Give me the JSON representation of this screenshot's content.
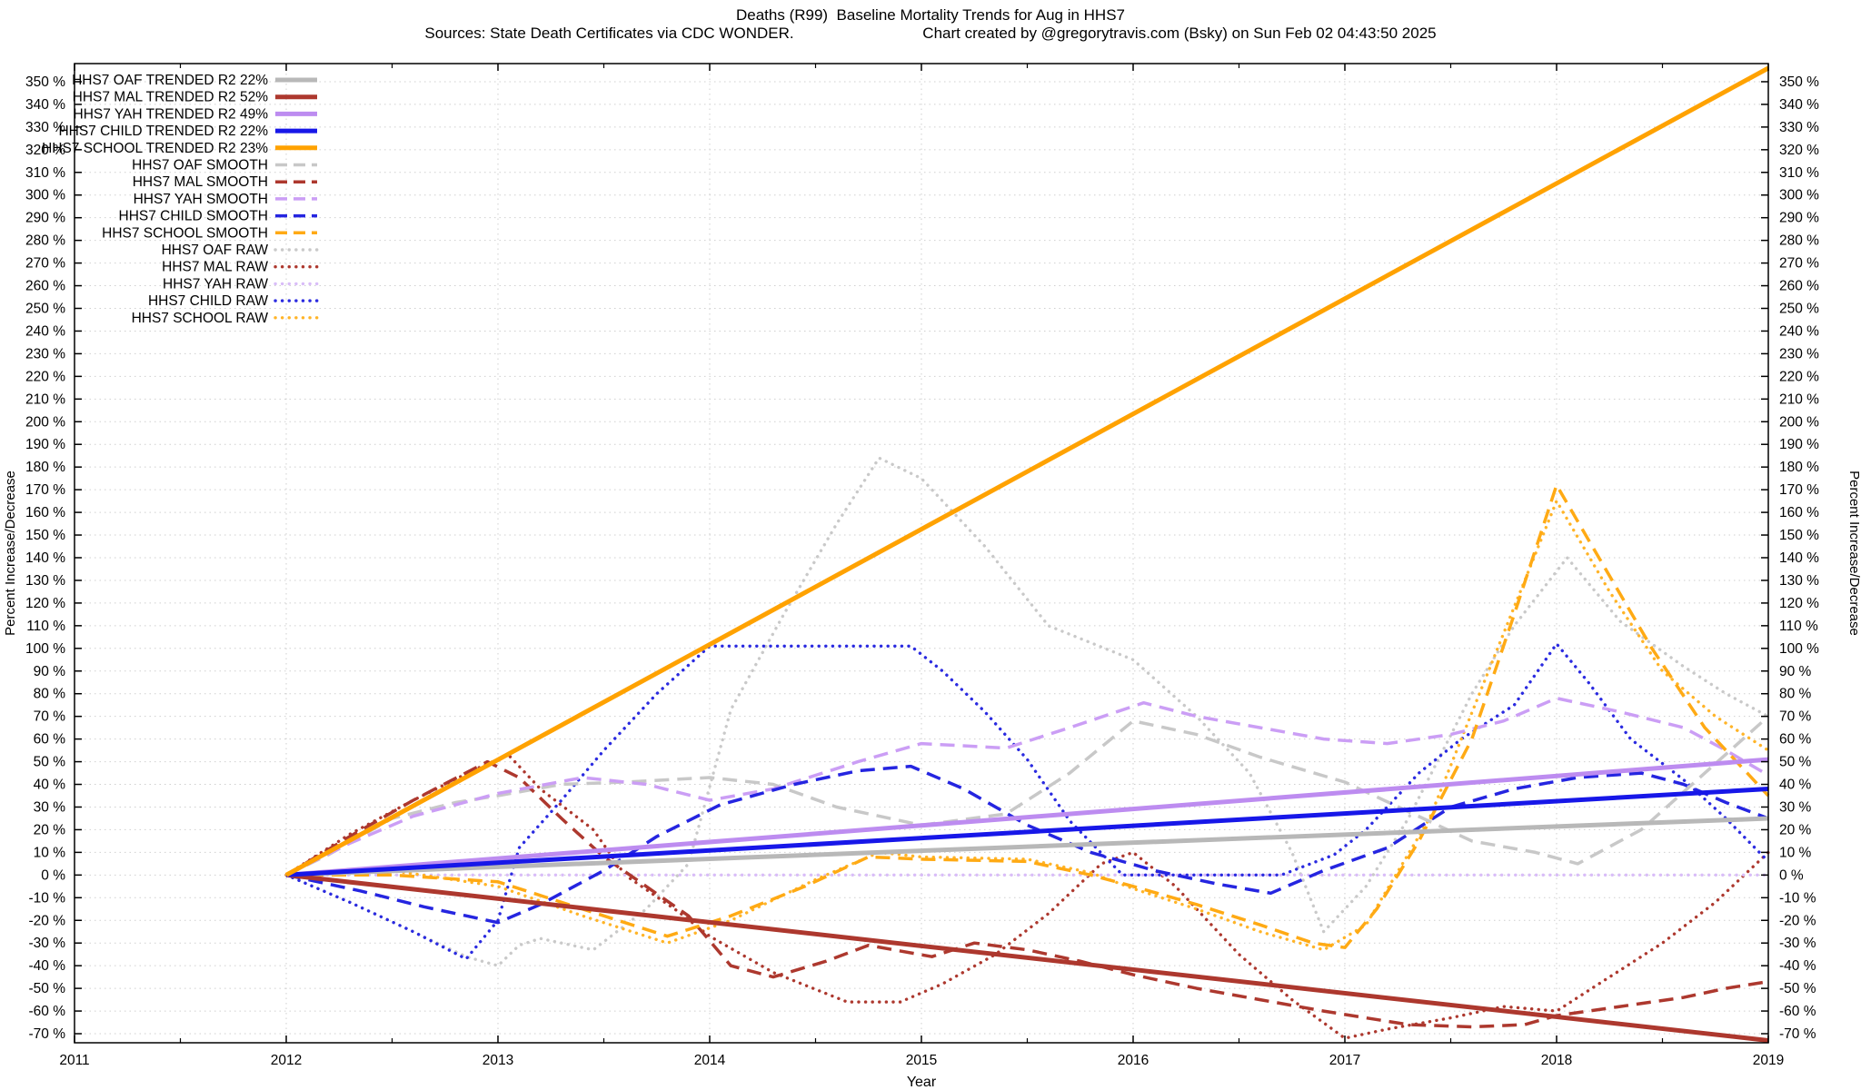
{
  "header": {
    "title": "Deaths (R99)  Baseline Mortality Trends for Aug in HHS7",
    "subtitle": "Sources: State Death Certificates via CDC WONDER.                              Chart created by @gregorytravis.com (Bsky) on Sun Feb 02 04:43:50 2025"
  },
  "chart_data": {
    "type": "line",
    "title": "Deaths (R99)  Baseline Mortality Trends for Aug in HHS7",
    "subtitle": "Sources: State Death Certificates via CDC WONDER.  Chart created by @gregorytravis.com (Bsky) on Sun Feb 02 04:43:50 2025",
    "xlabel": "Year",
    "ylabel_left": "Percent Increase/Decrease",
    "ylabel_right": "Percent Increase/Decrease",
    "xlim": [
      2011,
      2019
    ],
    "ylim": [
      -74,
      358
    ],
    "x_ticks": [
      2011,
      2012,
      2013,
      2014,
      2015,
      2016,
      2017,
      2018,
      2019
    ],
    "x_minor_step": 0.5,
    "y_ticks": {
      "min": -70,
      "max": 350,
      "step": 10,
      "suffix": " %"
    },
    "grid": true,
    "legend_position": "top-left",
    "series": [
      {
        "id": "oaf-trended",
        "legend": "HHS7 OAF TRENDED R2  22%",
        "style": "trended",
        "color": "#b8b8b8",
        "x": [
          2012,
          2019
        ],
        "y": [
          0,
          25
        ]
      },
      {
        "id": "mal-trended",
        "legend": "HHS7 MAL TRENDED R2  52%",
        "style": "trended",
        "color": "#ad382e",
        "x": [
          2012,
          2019
        ],
        "y": [
          0,
          -73
        ]
      },
      {
        "id": "yah-trended",
        "legend": "HHS7 YAH TRENDED R2  49%",
        "style": "trended",
        "color": "#bd8cf0",
        "x": [
          2012,
          2019
        ],
        "y": [
          0,
          51
        ]
      },
      {
        "id": "child-trended",
        "legend": "HHS7 CHILD TRENDED R2  22%",
        "style": "trended",
        "color": "#1717e8",
        "x": [
          2012,
          2019
        ],
        "y": [
          0,
          38
        ]
      },
      {
        "id": "school-trended",
        "legend": "HHS7 SCHOOL TRENDED R2  23%",
        "style": "trended",
        "color": "#ffa200",
        "x": [
          2012,
          2019
        ],
        "y": [
          0,
          356
        ]
      },
      {
        "id": "oaf-smooth",
        "legend": "HHS7 OAF SMOOTH",
        "style": "smooth",
        "color": "#c8c8c8",
        "x": [
          2012,
          2012.2,
          2012.5,
          2012.8,
          2013,
          2013.3,
          2013.6,
          2014,
          2014.3,
          2014.6,
          2015,
          2015.4,
          2015.7,
          2016,
          2016.3,
          2016.6,
          2017,
          2017.3,
          2017.6,
          2017.9,
          2018.1,
          2018.4,
          2018.7,
          2019
        ],
        "y": [
          0,
          9,
          25,
          32,
          35,
          40,
          41,
          43,
          40,
          30,
          22,
          27,
          45,
          68,
          62,
          52,
          41,
          28,
          15,
          10,
          5,
          20,
          45,
          70
        ]
      },
      {
        "id": "mal-smooth",
        "legend": "HHS7 MAL SMOOTH",
        "style": "smooth",
        "color": "#ad382e",
        "x": [
          2012,
          2012.3,
          2012.6,
          2012.95,
          2013.1,
          2013.3,
          2013.5,
          2013.7,
          2013.9,
          2014.1,
          2014.3,
          2014.55,
          2014.75,
          2015.05,
          2015.25,
          2015.5,
          2015.75,
          2016,
          2016.3,
          2016.6,
          2016.9,
          2017.1,
          2017.3,
          2017.6,
          2017.85,
          2018,
          2018.3,
          2018.6,
          2018.8,
          2019
        ],
        "y": [
          0,
          17,
          33,
          50,
          43,
          25,
          8,
          -5,
          -18,
          -40,
          -45,
          -38,
          -31,
          -36,
          -30,
          -33,
          -38,
          -44,
          -50,
          -55,
          -60,
          -63,
          -66,
          -67,
          -66,
          -62,
          -58,
          -54,
          -50,
          -47
        ]
      },
      {
        "id": "yah-smooth",
        "legend": "HHS7 YAH SMOOTH",
        "style": "smooth",
        "color": "#cb9ef5",
        "x": [
          2012,
          2012.3,
          2012.6,
          2013,
          2013.4,
          2013.7,
          2014,
          2014.3,
          2014.7,
          2015,
          2015.4,
          2015.7,
          2016.05,
          2016.3,
          2016.6,
          2016.9,
          2017.2,
          2017.5,
          2017.75,
          2018,
          2018.3,
          2018.6,
          2018.8,
          2019
        ],
        "y": [
          0,
          14,
          26,
          36,
          43,
          40,
          33,
          38,
          50,
          58,
          56,
          65,
          76,
          70,
          65,
          60,
          58,
          62,
          68,
          78,
          72,
          65,
          55,
          44
        ]
      },
      {
        "id": "child-smooth",
        "legend": "HHS7 CHILD SMOOTH",
        "style": "smooth",
        "color": "#2525e0",
        "x": [
          2012,
          2012.35,
          2012.65,
          2013,
          2013.2,
          2013.5,
          2013.75,
          2014.05,
          2014.4,
          2014.7,
          2014.95,
          2015.2,
          2015.5,
          2015.8,
          2016.1,
          2016.4,
          2016.65,
          2016.9,
          2017.2,
          2017.5,
          2017.8,
          2018.1,
          2018.4,
          2018.6,
          2018.8,
          2019
        ],
        "y": [
          0,
          -7,
          -14,
          -21,
          -13,
          2,
          17,
          31,
          40,
          46,
          48,
          38,
          22,
          10,
          2,
          -4,
          -8,
          2,
          12,
          30,
          38,
          43,
          45,
          40,
          32,
          25
        ]
      },
      {
        "id": "school-smooth",
        "legend": "HHS7 SCHOOL SMOOTH",
        "style": "smooth",
        "color": "#ffaa14",
        "x": [
          2012,
          2012.5,
          2013,
          2013.4,
          2013.8,
          2014.1,
          2014.45,
          2014.75,
          2015,
          2015.5,
          2015.8,
          2016,
          2016.3,
          2016.6,
          2016.85,
          2017,
          2017.15,
          2017.35,
          2017.6,
          2017.8,
          2018,
          2018.2,
          2018.45,
          2018.7,
          2019
        ],
        "y": [
          0,
          0,
          -3,
          -15,
          -27,
          -18,
          -5,
          8,
          7,
          6,
          0,
          -5,
          -13,
          -22,
          -30,
          -32,
          -15,
          15,
          60,
          115,
          172,
          140,
          100,
          65,
          35
        ]
      },
      {
        "id": "oaf-raw",
        "legend": "HHS7 OAF RAW",
        "style": "raw",
        "color": "#c9c9c9",
        "x": [
          2012,
          2012.3,
          2012.6,
          2012.85,
          2013,
          2013.1,
          2013.2,
          2013.45,
          2013.7,
          2013.9,
          2014.1,
          2014.35,
          2014.6,
          2014.8,
          2015,
          2015.3,
          2015.6,
          2016,
          2016.3,
          2016.55,
          2016.75,
          2016.9,
          2017.1,
          2017.3,
          2017.6,
          2017.8,
          2018.05,
          2018.3,
          2018.6,
          2018.8,
          2019
        ],
        "y": [
          0,
          -12,
          -25,
          -36,
          -40,
          -31,
          -28,
          -33,
          -15,
          5,
          73,
          115,
          155,
          184,
          175,
          145,
          110,
          95,
          70,
          45,
          10,
          -25,
          -5,
          25,
          80,
          110,
          140,
          112,
          92,
          80,
          70
        ]
      },
      {
        "id": "mal-raw",
        "legend": "HHS7 MAL RAW",
        "style": "raw",
        "color": "#ad382e",
        "x": [
          2012,
          2012.3,
          2012.6,
          2012.9,
          2013.05,
          2013.2,
          2013.45,
          2013.6,
          2013.85,
          2014,
          2014.3,
          2014.65,
          2014.9,
          2015.1,
          2015.35,
          2015.6,
          2015.85,
          2016,
          2016.2,
          2016.5,
          2016.75,
          2017,
          2017.2,
          2017.5,
          2017.75,
          2018,
          2018.2,
          2018.5,
          2018.75,
          2019
        ],
        "y": [
          0,
          18,
          33,
          47,
          53,
          38,
          20,
          0,
          -16,
          -27,
          -43,
          -56,
          -56,
          -48,
          -35,
          -17,
          5,
          10,
          -5,
          -35,
          -55,
          -72,
          -68,
          -63,
          -58,
          -60,
          -48,
          -30,
          -12,
          10
        ]
      },
      {
        "id": "yah-raw",
        "legend": "HHS7 YAH RAW",
        "style": "raw",
        "color": "#d9bdf8",
        "x": [
          2012,
          2013,
          2014,
          2015,
          2016,
          2017,
          2018,
          2019
        ],
        "y": [
          0,
          0,
          0,
          0,
          0,
          0,
          0,
          0
        ]
      },
      {
        "id": "child-raw",
        "legend": "HHS7 CHILD RAW",
        "style": "raw",
        "color": "#2a2ae0",
        "x": [
          2012,
          2012.3,
          2012.6,
          2012.85,
          2013,
          2013.1,
          2013.3,
          2013.5,
          2013.75,
          2014,
          2014.5,
          2014.95,
          2015.1,
          2015.3,
          2015.5,
          2015.7,
          2015.95,
          2016.3,
          2016.7,
          2016.95,
          2017.1,
          2017.35,
          2017.55,
          2017.8,
          2018,
          2018.15,
          2018.35,
          2018.6,
          2018.8,
          2019
        ],
        "y": [
          0,
          -12,
          -25,
          -37,
          -20,
          12,
          33,
          55,
          80,
          101,
          101,
          101,
          90,
          72,
          51,
          24,
          0,
          0,
          0,
          9,
          20,
          45,
          60,
          75,
          102,
          85,
          60,
          42,
          25,
          6
        ]
      },
      {
        "id": "school-raw",
        "legend": "HHS7 SCHOOL RAW",
        "style": "raw",
        "color": "#ffb428",
        "x": [
          2012,
          2012.5,
          2013,
          2013.4,
          2013.8,
          2014.1,
          2014.5,
          2014.8,
          2015,
          2015.5,
          2015.8,
          2016,
          2016.3,
          2016.6,
          2016.9,
          2017.1,
          2017.4,
          2017.7,
          2018,
          2018.25,
          2018.5,
          2018.75,
          2019
        ],
        "y": [
          0,
          2,
          -5,
          -18,
          -30,
          -20,
          -2,
          10,
          8,
          7,
          1,
          -6,
          -15,
          -25,
          -33,
          -22,
          25,
          95,
          165,
          125,
          90,
          70,
          55
        ]
      }
    ]
  },
  "colors": {
    "background": "#ffffff",
    "border": "#000000",
    "grid": "#cfcfcf",
    "oaf": "#b8b8b8",
    "mal": "#ad382e",
    "yah": "#bd8cf0",
    "child": "#1717e8",
    "school": "#ffa200"
  }
}
